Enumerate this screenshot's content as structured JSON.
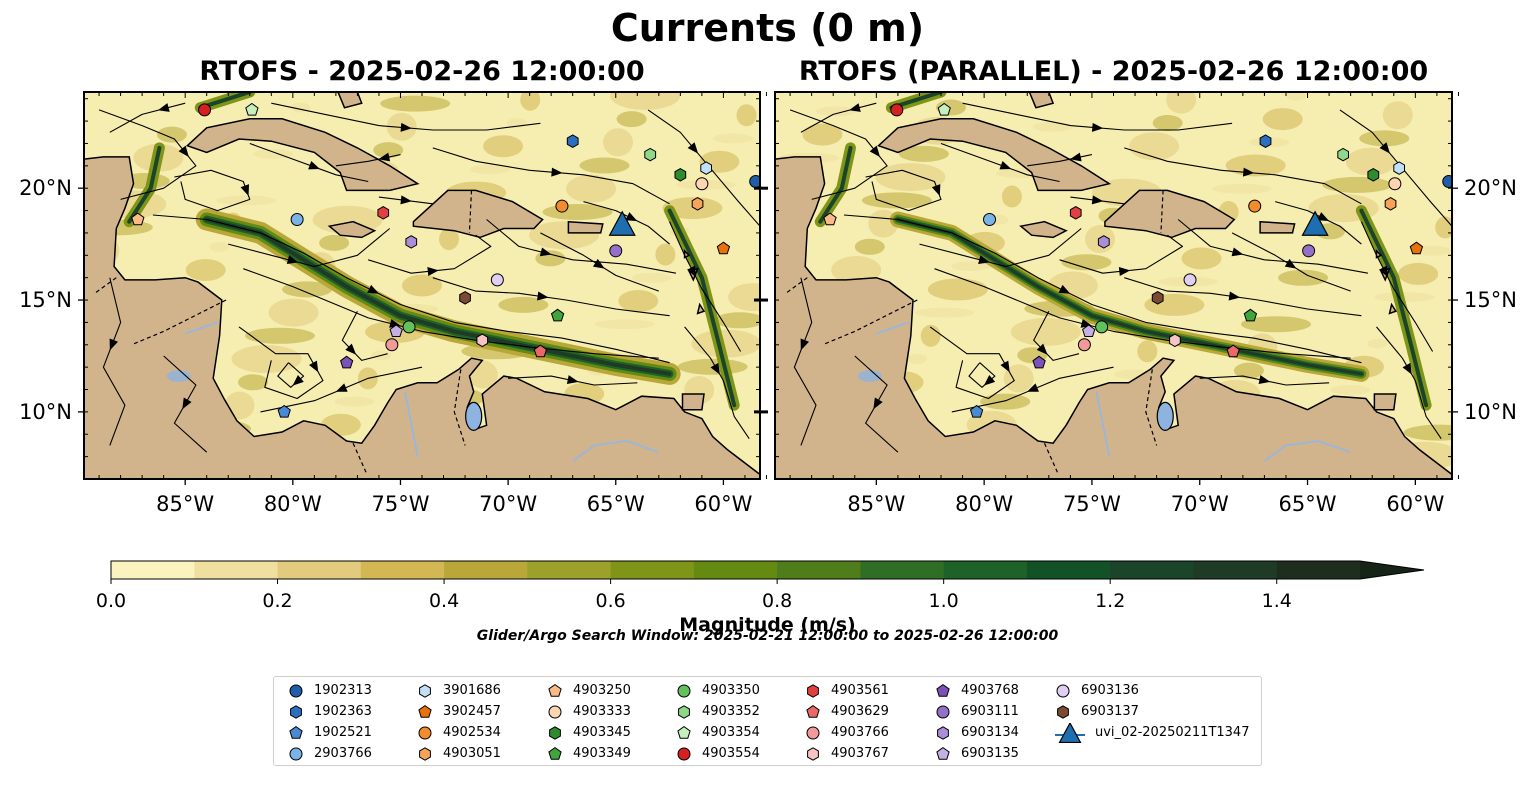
{
  "figure": {
    "suptitle": "Currents (0 m)",
    "panels": [
      {
        "title": "RTOFS - 2025-02-26 12:00:00"
      },
      {
        "title": "RTOFS (PARALLEL) - 2025-02-26 12:00:00"
      }
    ],
    "lon_ticks": [
      "85°W",
      "80°W",
      "75°W",
      "70°W",
      "65°W",
      "60°W"
    ],
    "lat_ticks": [
      "20°N",
      "15°N",
      "10°N"
    ],
    "colorbar": {
      "label": "Magnitude (m/s)",
      "ticks": [
        "0.0",
        "0.2",
        "0.4",
        "0.6",
        "0.8",
        "1.0",
        "1.2",
        "1.4"
      ],
      "colors": [
        "#fbf3bf",
        "#efe0a0",
        "#e2cb7c",
        "#d2b753",
        "#b9a839",
        "#9ba12a",
        "#7f9517",
        "#648a12",
        "#4f7d1b",
        "#2f6e25",
        "#1d6228",
        "#135226",
        "#1a4529",
        "#1f3a25",
        "#1e2e1e",
        "#162417"
      ]
    },
    "search_window": "Glider/Argo Search Window: 2025-02-21 12:00:00 to 2025-02-26 12:00:00",
    "colors": {
      "land": "#d2b48c",
      "water_line": "#9bb6d6",
      "lake": "#8fb3e0",
      "ocean_base": "#f6eeb0"
    }
  },
  "legend": {
    "items": [
      {
        "label": "1902313",
        "marker": "circle",
        "color": "#1f5ea8"
      },
      {
        "label": "1902363",
        "marker": "hexagon",
        "color": "#2b6fc0"
      },
      {
        "label": "1902521",
        "marker": "pentagon",
        "color": "#4a8ad4"
      },
      {
        "label": "2903766",
        "marker": "circle",
        "color": "#7ab4e6"
      },
      {
        "label": "3901686",
        "marker": "hexagon",
        "color": "#c2e1f6"
      },
      {
        "label": "3902457",
        "marker": "pentagon",
        "color": "#e8710a"
      },
      {
        "label": "4902534",
        "marker": "circle",
        "color": "#f28c2c"
      },
      {
        "label": "4903051",
        "marker": "hexagon",
        "color": "#f7a35a"
      },
      {
        "label": "4903250",
        "marker": "pentagon",
        "color": "#fbbb86"
      },
      {
        "label": "4903333",
        "marker": "circle",
        "color": "#fdd5b1"
      },
      {
        "label": "4903345",
        "marker": "hexagon",
        "color": "#2e8b2e"
      },
      {
        "label": "4903349",
        "marker": "pentagon",
        "color": "#40a63c"
      },
      {
        "label": "4903350",
        "marker": "circle",
        "color": "#63c15c"
      },
      {
        "label": "4903352",
        "marker": "hexagon",
        "color": "#8fd889"
      },
      {
        "label": "4903354",
        "marker": "pentagon",
        "color": "#c5f0bd"
      },
      {
        "label": "4903554",
        "marker": "circle",
        "color": "#d42020"
      },
      {
        "label": "4903561",
        "marker": "hexagon",
        "color": "#e04040"
      },
      {
        "label": "4903629",
        "marker": "pentagon",
        "color": "#ea6868"
      },
      {
        "label": "4903766",
        "marker": "circle",
        "color": "#f29a9a"
      },
      {
        "label": "4903767",
        "marker": "hexagon",
        "color": "#f7c4c4"
      },
      {
        "label": "4903768",
        "marker": "pentagon",
        "color": "#7d52b8"
      },
      {
        "label": "6903111",
        "marker": "circle",
        "color": "#9470c8"
      },
      {
        "label": "6903134",
        "marker": "hexagon",
        "color": "#ab8fd6"
      },
      {
        "label": "6903135",
        "marker": "pentagon",
        "color": "#c4b0e4"
      },
      {
        "label": "6903136",
        "marker": "circle",
        "color": "#e0cff3"
      },
      {
        "label": "6903137",
        "marker": "hexagon",
        "color": "#7b4a32"
      },
      {
        "label": "uvi_02-20250211T1347",
        "marker": "triangle",
        "color": "#1f6fb0"
      }
    ]
  },
  "chart_data": {
    "type": "map",
    "title": "Currents (0 m)",
    "lon_range": [
      -89.7,
      -58.3
    ],
    "lat_range": [
      7.0,
      24.3
    ],
    "panels": [
      {
        "title": "RTOFS - 2025-02-26 12:00:00"
      },
      {
        "title": "RTOFS (PARALLEL) - 2025-02-26 12:00:00"
      }
    ],
    "colorbar": {
      "label": "Magnitude (m/s)",
      "range": [
        0.0,
        1.6
      ],
      "ticks": [
        0.0,
        0.2,
        0.4,
        0.6,
        0.8,
        1.0,
        1.2,
        1.4
      ],
      "extend": "max"
    },
    "floats": [
      {
        "id": "1902313",
        "lon": -58.5,
        "lat": 20.3
      },
      {
        "id": "1902363",
        "lon": -67.0,
        "lat": 22.1
      },
      {
        "id": "1902521",
        "lon": -80.4,
        "lat": 10.0
      },
      {
        "id": "2903766",
        "lon": -79.8,
        "lat": 18.6
      },
      {
        "id": "3901686",
        "lon": -60.8,
        "lat": 20.9
      },
      {
        "id": "3902457",
        "lon": -60.0,
        "lat": 17.3
      },
      {
        "id": "4902534",
        "lon": -67.5,
        "lat": 19.2
      },
      {
        "id": "4903051",
        "lon": -61.2,
        "lat": 19.3
      },
      {
        "id": "4903250",
        "lon": -87.2,
        "lat": 18.6
      },
      {
        "id": "4903333",
        "lon": -61.0,
        "lat": 20.2
      },
      {
        "id": "4903345",
        "lon": -62.0,
        "lat": 20.6
      },
      {
        "id": "4903349",
        "lon": -67.7,
        "lat": 14.3
      },
      {
        "id": "4903350",
        "lon": -74.6,
        "lat": 13.8
      },
      {
        "id": "4903352",
        "lon": -63.4,
        "lat": 21.5
      },
      {
        "id": "4903354",
        "lon": -81.9,
        "lat": 23.5
      },
      {
        "id": "4903554",
        "lon": -84.1,
        "lat": 23.5
      },
      {
        "id": "4903561",
        "lon": -75.8,
        "lat": 18.9
      },
      {
        "id": "4903629",
        "lon": -68.5,
        "lat": 12.7
      },
      {
        "id": "4903766",
        "lon": -75.4,
        "lat": 13.0
      },
      {
        "id": "4903767",
        "lon": -71.2,
        "lat": 13.2
      },
      {
        "id": "4903768",
        "lon": -77.5,
        "lat": 12.2
      },
      {
        "id": "6903111",
        "lon": -65.0,
        "lat": 17.2
      },
      {
        "id": "6903134",
        "lon": -74.5,
        "lat": 17.6
      },
      {
        "id": "6903135",
        "lon": -75.2,
        "lat": 13.6
      },
      {
        "id": "6903136",
        "lon": -70.5,
        "lat": 15.9
      },
      {
        "id": "6903137",
        "lon": -72.0,
        "lat": 15.1
      },
      {
        "id": "uvi_02-20250211T1347",
        "lon": -64.7,
        "lat": 18.3
      }
    ]
  }
}
